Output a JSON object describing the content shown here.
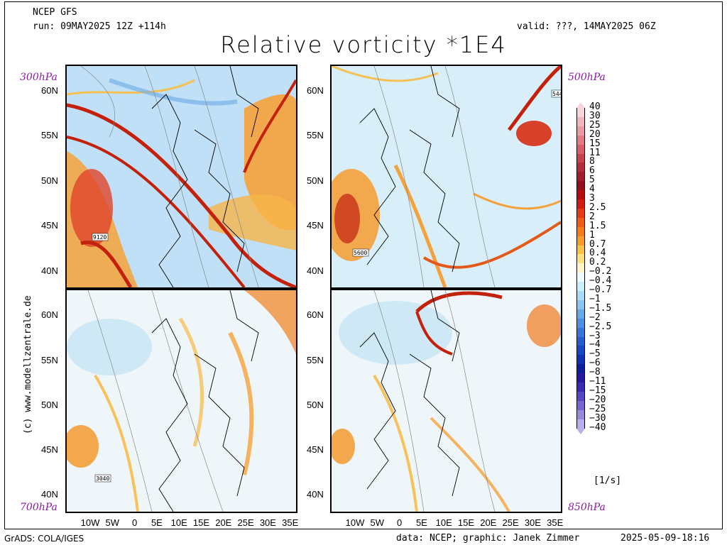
{
  "header": {
    "model": "NCEP GFS",
    "run": "run: 09MAY2025 12Z +114h",
    "valid": "valid: ???, 14MAY2025 06Z",
    "title": "Relative vorticity *1E4"
  },
  "levels": {
    "top_left": "300hPa",
    "top_right": "500hPa",
    "bottom_left": "700hPa",
    "bottom_right": "850hPa"
  },
  "lat_labels": [
    "60N",
    "55N",
    "50N",
    "45N",
    "40N"
  ],
  "lon_labels": [
    "10W",
    "5W",
    "0",
    "5E",
    "10E",
    "15E",
    "20E",
    "25E",
    "30E",
    "35E"
  ],
  "contour_labels": {
    "top_left": "9120",
    "top_right_a": "5600",
    "top_right_b": "544",
    "bottom_left": "3040"
  },
  "colorbar": {
    "labels": [
      "40",
      "30",
      "25",
      "20",
      "15",
      "11",
      "8",
      "6",
      "5",
      "4",
      "3",
      "2.5",
      "2",
      "1.5",
      "1",
      "0.7",
      "0.4",
      "0.2",
      "−0.2",
      "−0.4",
      "−0.7",
      "−1",
      "−1.5",
      "−2",
      "−2.5",
      "−3",
      "−4",
      "−5",
      "−6",
      "−8",
      "−11",
      "−15",
      "−20",
      "−25",
      "−30",
      "−40"
    ],
    "colors": [
      "#f6d6da",
      "#f0b6bc",
      "#ea9aa3",
      "#e37a84",
      "#d85f6a",
      "#c8424e",
      "#b52c3a",
      "#a21d2c",
      "#93101e",
      "#b50c0c",
      "#d41b0f",
      "#e53a12",
      "#f05c16",
      "#f47d1a",
      "#f89f2a",
      "#fbc245",
      "#fde27a",
      "#fff6c8",
      "#eefcff",
      "#c8f0fb",
      "#a6dcf5",
      "#86c6ef",
      "#64a9e8",
      "#4a8fe0",
      "#3676d8",
      "#235ecf",
      "#1748c4",
      "#1031b2",
      "#0c1e9c",
      "#2718a0",
      "#3b2ab0",
      "#5546c2",
      "#7566d0",
      "#968adc",
      "#b8b0e8"
    ],
    "unit": "[1/s]"
  },
  "footer": {
    "left": "GrADS: COLA/IGES",
    "center": "data: NCEP; graphic: Janek Zimmer",
    "right": "2025-05-09-18:16",
    "copyright": "(c) www.modellzentrale.de"
  }
}
